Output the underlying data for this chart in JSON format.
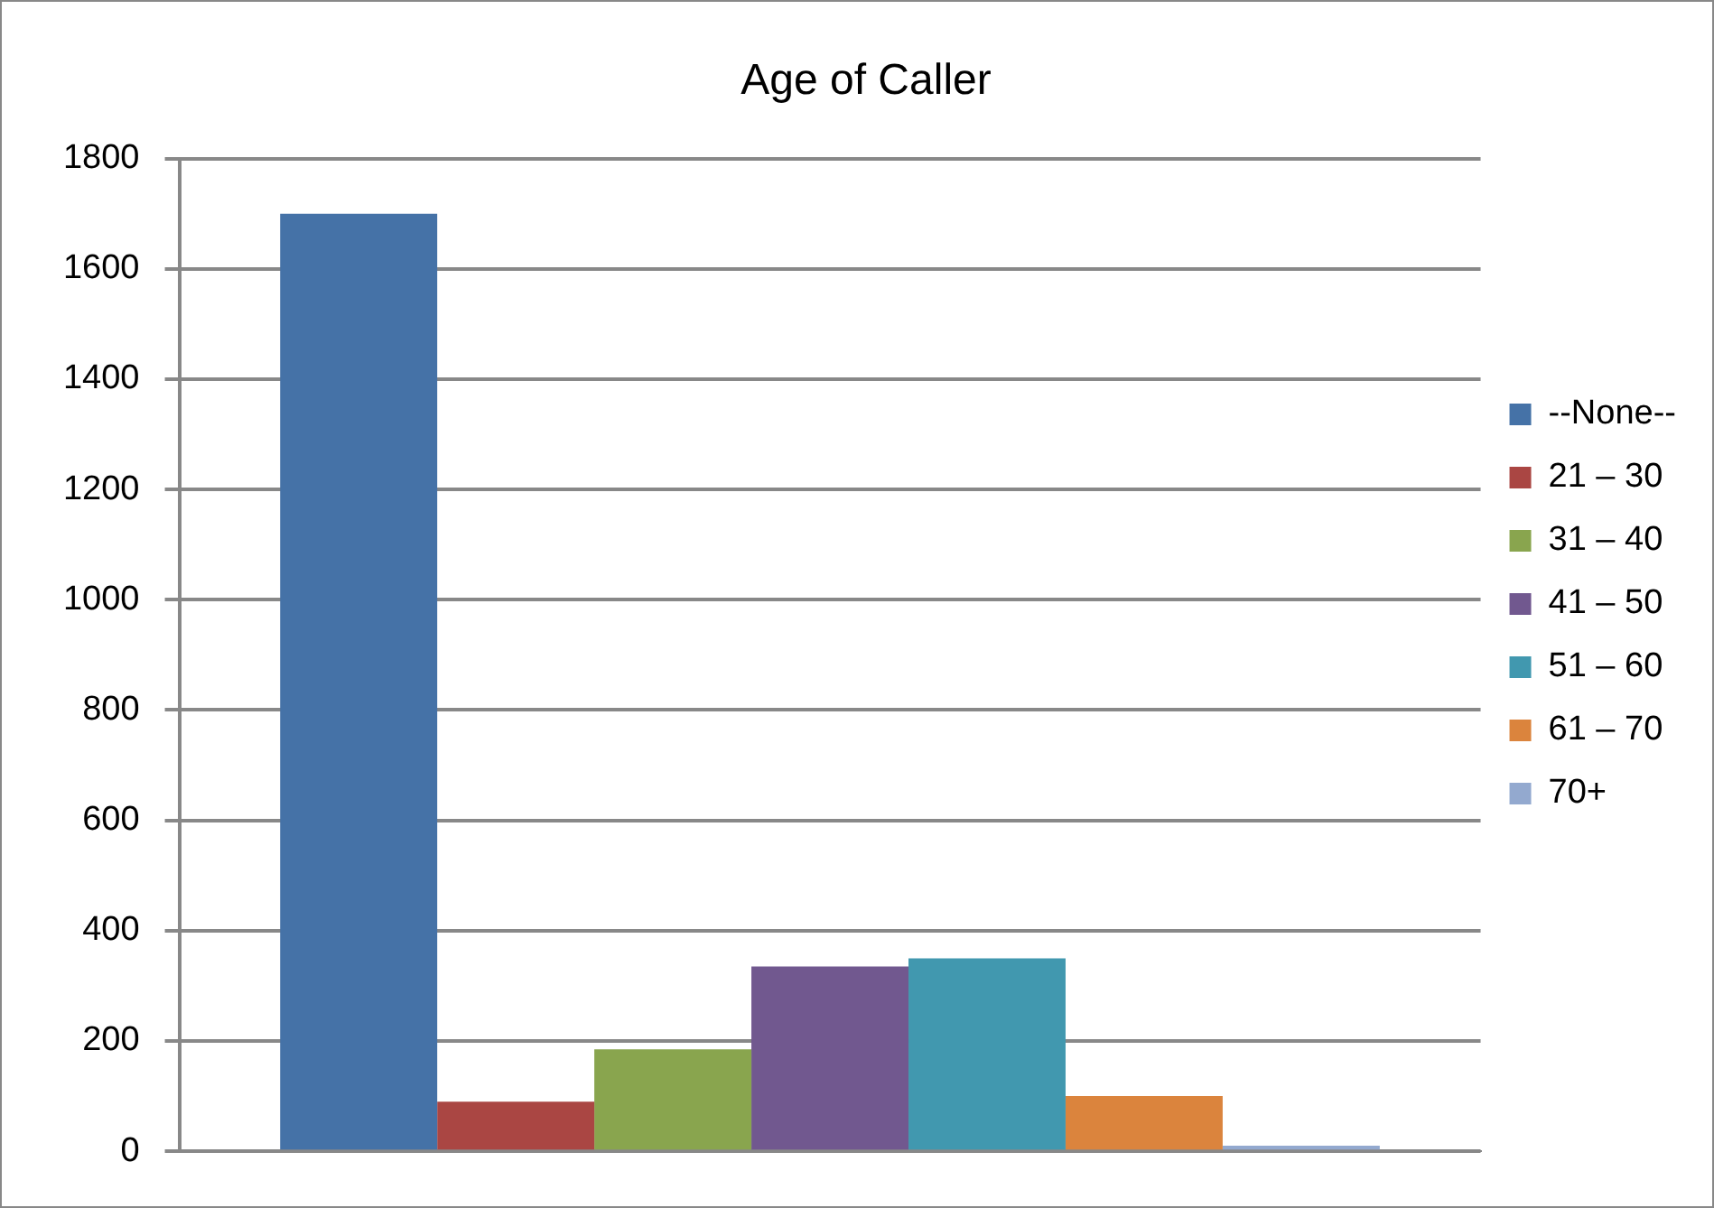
{
  "chart_data": {
    "type": "bar",
    "title": "Age of Caller",
    "categories": [
      null
    ],
    "series": [
      {
        "name": "--None--",
        "color": "#4572a7",
        "values": [
          1700
        ]
      },
      {
        "name": "21 – 30",
        "color": "#aa4643",
        "values": [
          90
        ]
      },
      {
        "name": "31 – 40",
        "color": "#89a54e",
        "values": [
          185
        ]
      },
      {
        "name": "41 – 50",
        "color": "#71588f",
        "values": [
          335
        ]
      },
      {
        "name": "51 – 60",
        "color": "#4198af",
        "values": [
          350
        ]
      },
      {
        "name": "61 – 70",
        "color": "#db843d",
        "values": [
          100
        ]
      },
      {
        "name": "70+",
        "color": "#93a9cf",
        "values": [
          10
        ]
      }
    ],
    "ylim": [
      0,
      1800
    ],
    "yticks": [
      0,
      200,
      400,
      600,
      800,
      1000,
      1200,
      1400,
      1600,
      1800
    ],
    "grid": "y",
    "legend": "right"
  }
}
